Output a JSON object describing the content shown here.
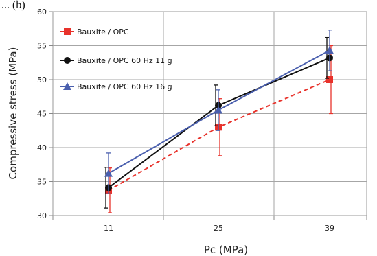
{
  "caption_fragment": "... (b)",
  "chart_data": {
    "type": "line",
    "title": "",
    "xlabel": "Pc (MPa)",
    "ylabel": "Compressive stress (MPa)",
    "categories": [
      "11",
      "25",
      "39"
    ],
    "ylim": [
      30,
      60
    ],
    "yticks": [
      "30",
      "35",
      "40",
      "45",
      "50",
      "55",
      "60"
    ],
    "grid": true,
    "legend_position": "top-left",
    "series": [
      {
        "name": "Bauxite / OPC",
        "values": [
          33.7,
          43.0,
          50.0
        ],
        "error_up": [
          3.3,
          4.2,
          5.0
        ],
        "error_down": [
          3.3,
          4.2,
          5.0
        ],
        "color": "#e8322b",
        "line_style": "dashed",
        "marker": "square"
      },
      {
        "name": "Bauxite / OPC 60 Hz 11 g",
        "values": [
          34.1,
          46.2,
          53.2
        ],
        "error_up": [
          3.0,
          3.0,
          3.0
        ],
        "error_down": [
          3.0,
          3.0,
          3.0
        ],
        "color": "#111111",
        "line_style": "solid",
        "marker": "circle"
      },
      {
        "name": "Bauxite / OPC 60 Hz 16 g",
        "values": [
          36.2,
          45.5,
          54.3
        ],
        "error_up": [
          3.0,
          3.0,
          3.0
        ],
        "error_down": [
          3.0,
          3.0,
          3.0
        ],
        "color": "#4a5fae",
        "line_style": "solid",
        "marker": "triangle"
      }
    ]
  }
}
